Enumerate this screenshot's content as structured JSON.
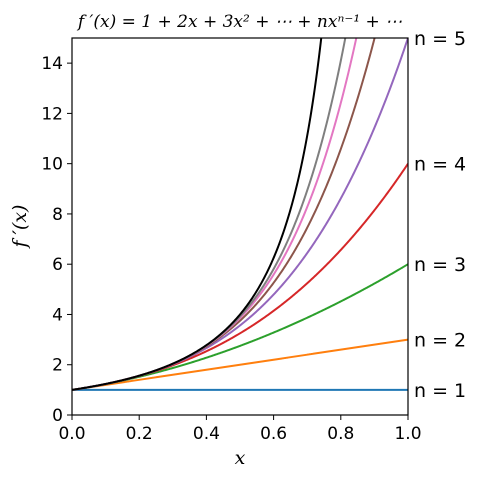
{
  "chart_data": {
    "type": "line",
    "title": "f ′(x) = 1 + 2x + 3x² + ⋯ + nxⁿ⁻¹ + ⋯",
    "xlabel": "x",
    "ylabel": "f ′(x)",
    "xlim": [
      0.0,
      1.0
    ],
    "ylim": [
      0,
      15
    ],
    "grid": false,
    "x_ticks": [
      "0.0",
      "0.2",
      "0.4",
      "0.6",
      "0.8",
      "1.0"
    ],
    "y_ticks": [
      "0",
      "2",
      "4",
      "6",
      "8",
      "10",
      "12",
      "14"
    ],
    "x_tick_values": [
      0.0,
      0.2,
      0.4,
      0.6,
      0.8,
      1.0
    ],
    "y_tick_values": [
      0,
      2,
      4,
      6,
      8,
      10,
      12,
      14
    ],
    "function": "sum_{k=1}^{n} k*x^(k-1)",
    "series": [
      {
        "n": 1,
        "color": "#1f77b4"
      },
      {
        "n": 2,
        "color": "#ff7f0e"
      },
      {
        "n": 3,
        "color": "#2ca02c"
      },
      {
        "n": 4,
        "color": "#d62728"
      },
      {
        "n": 5,
        "color": "#9467bd"
      },
      {
        "n": 6,
        "color": "#8c564b"
      },
      {
        "n": 7,
        "color": "#e377c2"
      },
      {
        "n": 8,
        "color": "#7f7f7f"
      },
      {
        "limit": true,
        "color": "#000000",
        "formula": "1/(1-x)^2"
      }
    ],
    "curve_labels": [
      {
        "text": "n = 1",
        "y": 1
      },
      {
        "text": "n = 2",
        "y": 3
      },
      {
        "text": "n = 3",
        "y": 6
      },
      {
        "text": "n = 4",
        "y": 10
      },
      {
        "text": "n = 5",
        "y": 15
      }
    ]
  }
}
